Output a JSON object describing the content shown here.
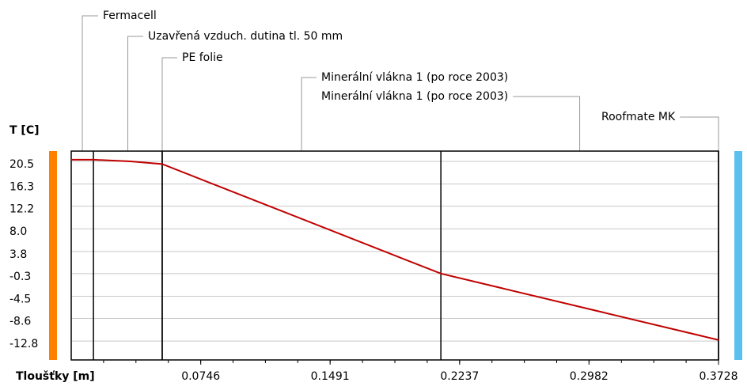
{
  "chart_data": {
    "type": "line",
    "y_label": "T [C]",
    "x_label": "Tloušťky [m]",
    "layers": [
      "Fermacell",
      "Uzavřená vzduch. dutina tl. 50 mm",
      "PE folie",
      "Minerální vlákna 1 (po roce 2003)",
      "Minerální vlákna 1 (po roce 2003)",
      "Roofmate MK"
    ],
    "layer_boundaries": [
      0,
      0.0128,
      0.0524,
      0.0524,
      0.2129,
      0.3728,
      0.3728
    ],
    "x": [
      0,
      0.0128,
      0.0341,
      0.0524,
      0.2129,
      0.3728
    ],
    "series": [
      {
        "color": "#c00000",
        "values": [
          20.8,
          20.8,
          20.5,
          20.0,
          -0.3,
          -12.6
        ]
      }
    ],
    "xlim": [
      0,
      0.3728
    ],
    "xticks": [
      0.0746,
      0.1491,
      0.2237,
      0.2982,
      0.3728
    ],
    "ylim": [
      -16.3,
      22.4
    ],
    "yticks": [
      20.5,
      16.3,
      12.2,
      {
        "value": 8.0,
        "label": "8.0"
      },
      3.8,
      -0.3,
      -4.5,
      -8.6,
      -12.8
    ],
    "grid": true,
    "inside_color": "#ff8000",
    "outside_color": "#5bc0f0"
  }
}
